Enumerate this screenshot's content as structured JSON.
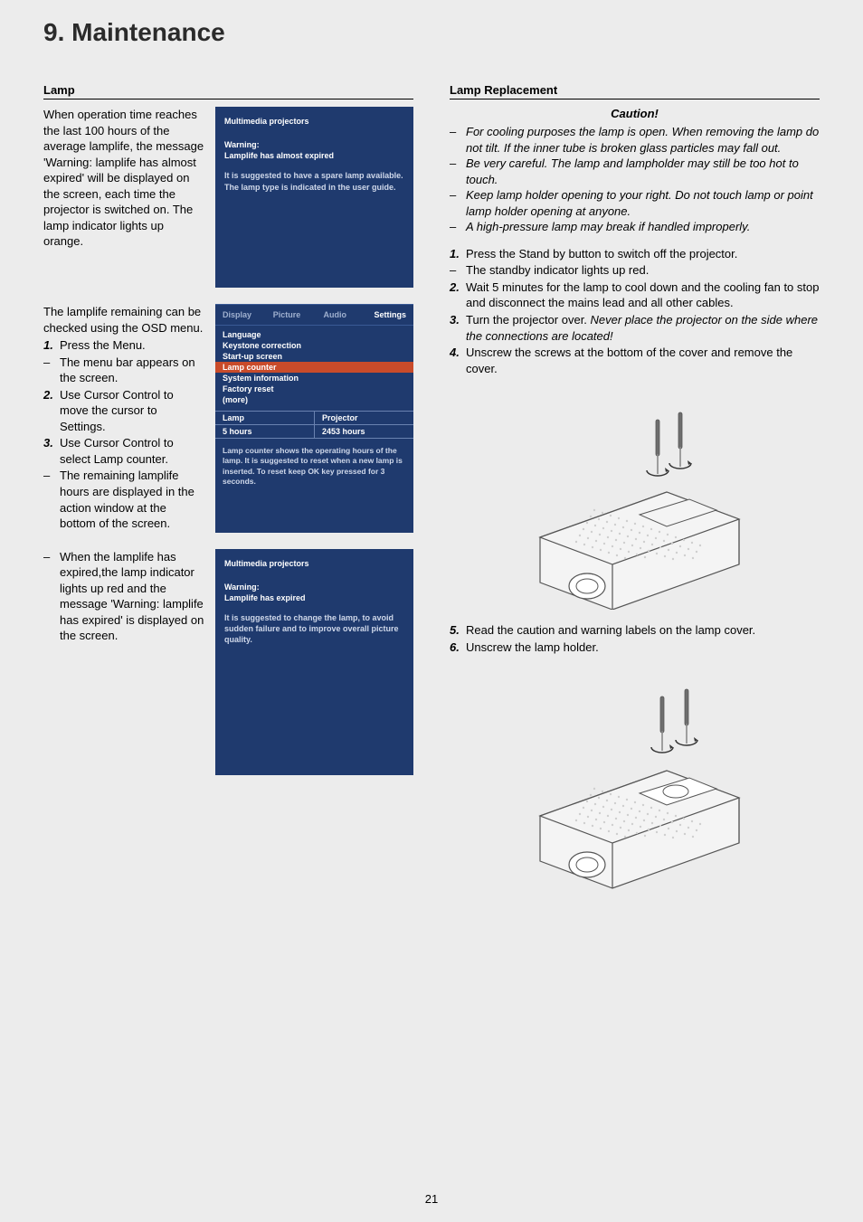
{
  "page": {
    "title": "9. Maintenance",
    "number": "21"
  },
  "left": {
    "section_header": "Lamp",
    "intro": "When operation time reaches the last 100 hours of the average lamplife, the message 'Warning: lamplife has almost expired' will be displayed on the screen, each time the projector is switched on. The lamp indicator lights up orange.",
    "panel1": {
      "title": "Multimedia projectors",
      "warning_label": "Warning:",
      "warning_text": "Lamplife has almost expired",
      "suggestion": "It is suggested to have a spare lamp available. The lamp type is indicated in the user guide."
    },
    "osd_intro": "The lamplife remaining can be checked using the OSD menu.",
    "osd_steps": [
      {
        "num": "1.",
        "text": "Press the Menu."
      },
      {
        "dash": "–",
        "text": "The menu bar appears on the screen."
      },
      {
        "num": "2.",
        "text": "Use Cursor Control to move the cursor to Settings."
      },
      {
        "num": "3.",
        "text": "Use Cursor Control to select Lamp counter."
      },
      {
        "dash": "–",
        "text": "The remaining lamplife hours are displayed in the action window at the bottom of the screen."
      }
    ],
    "osd": {
      "tabs": [
        "Display",
        "Picture",
        "Audio",
        "Settings"
      ],
      "active_tab": "Settings",
      "menu": [
        "Language",
        "Keystone correction",
        "Start-up screen",
        "Lamp counter",
        "System information",
        "Factory reset",
        "(more)"
      ],
      "highlight": "Lamp counter",
      "table": {
        "left_header": "Lamp",
        "left_value": "5 hours",
        "right_header": "Projector",
        "right_value": "2453 hours"
      },
      "note": "Lamp counter shows the operating hours of the lamp. It is suggested to reset when a new lamp is inserted. To reset keep OK key pressed for 3 seconds."
    },
    "expired_text": "When the lamplife has expired,the lamp indicator lights up red and the message 'Warning: lamplife has expired' is displayed on the screen.",
    "expired_dash": "–",
    "panel2": {
      "title": "Multimedia projectors",
      "warning_label": "Warning:",
      "warning_text": "Lamplife has expired",
      "suggestion": "It is suggested to change the lamp, to avoid sudden failure and to improve overall picture quality."
    }
  },
  "right": {
    "section_header": "Lamp Replacement",
    "caution_title": "Caution!",
    "cautions": [
      "For cooling purposes the lamp is open. When removing the lamp do not tilt. If the inner tube is broken glass particles may fall out.",
      "Be very careful. The lamp and lampholder may still be too hot to touch.",
      "Keep lamp holder opening to your right. Do not touch lamp or point lamp holder opening at anyone.",
      "A high-pressure lamp may break if handled improperly."
    ],
    "steps1": [
      {
        "num": "1.",
        "text": "Press the Stand by button to switch off the projector."
      },
      {
        "dash": "–",
        "text": "The standby indicator lights up red."
      },
      {
        "num": "2.",
        "text": "Wait 5 minutes for the lamp to cool down and the cooling fan to stop and disconnect the mains lead and all other cables."
      },
      {
        "num": "3.",
        "text": "Turn the projector over. ",
        "em": "Never place the projector on the side where the connections are located!"
      },
      {
        "num": "4.",
        "text": "Unscrew the screws at the bottom of the cover and remove the cover."
      }
    ],
    "steps2": [
      {
        "num": "5.",
        "text": "Read the caution and warning labels on the lamp cover."
      },
      {
        "num": "6.",
        "text": "Unscrew the lamp holder."
      }
    ],
    "figure_colors": {
      "body_fill": "#f4f4f4",
      "body_stroke": "#555555",
      "dot_fill": "#cfcfcf",
      "screw_fill": "#8a8a8a",
      "handle_fill": "#6e6e6e",
      "arrow_fill": "#333333"
    }
  }
}
